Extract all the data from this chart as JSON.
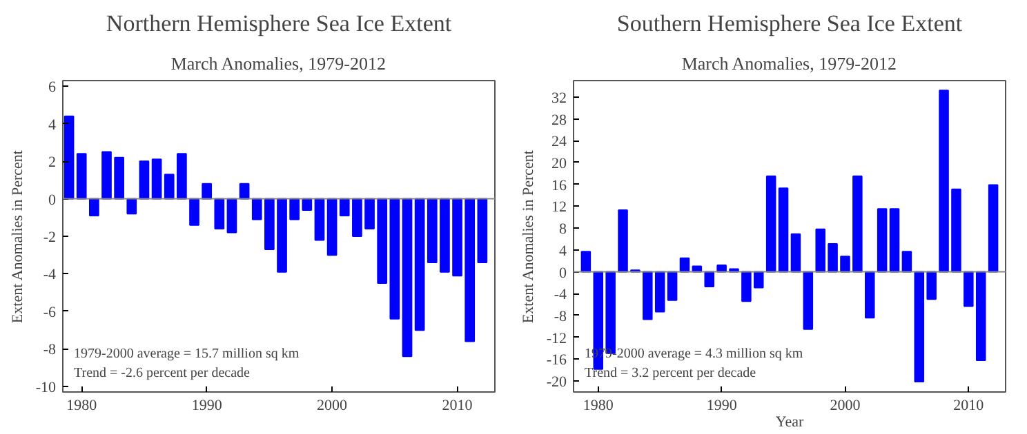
{
  "chart_data": [
    {
      "type": "bar",
      "title": "Northern Hemisphere Sea Ice Extent",
      "subtitle": "March Anomalies, 1979-2012",
      "ylabel": "Extent Anomalies in Percent",
      "x": [
        1979,
        1980,
        1981,
        1982,
        1983,
        1984,
        1985,
        1986,
        1987,
        1988,
        1989,
        1990,
        1991,
        1992,
        1993,
        1994,
        1995,
        1996,
        1997,
        1998,
        1999,
        2000,
        2001,
        2002,
        2003,
        2004,
        2005,
        2006,
        2007,
        2008,
        2009,
        2010,
        2011,
        2012
      ],
      "values": [
        4.4,
        2.4,
        -0.9,
        2.5,
        2.2,
        -0.8,
        2.0,
        2.1,
        1.3,
        2.4,
        -1.4,
        0.8,
        -1.6,
        -1.8,
        0.8,
        -1.1,
        -2.7,
        -3.9,
        -1.1,
        -0.6,
        -2.2,
        -3.0,
        -0.9,
        -2.0,
        -1.6,
        -4.5,
        -6.4,
        -8.4,
        -7.0,
        -3.4,
        -3.9,
        -4.1,
        -7.6,
        -3.4
      ],
      "color": "#0000ff",
      "xlim": [
        1978.5,
        2013
      ],
      "xticks": [
        1980,
        1990,
        2000,
        2010
      ],
      "ylim": [
        -10.3,
        6.3
      ],
      "yticks": [
        -10,
        -8,
        -6,
        -4,
        -2,
        0,
        2,
        4,
        6
      ],
      "ref_lines": [
        {
          "axis": "y",
          "value": 0,
          "color": "#888888"
        }
      ],
      "annotations": [
        "1979-2000 average = 15.7 million sq km",
        "Trend =   -2.6 percent per decade"
      ]
    },
    {
      "type": "bar",
      "title": "Southern Hemisphere Sea Ice Extent",
      "subtitle": "March Anomalies, 1979-2012",
      "xlabel": "Year",
      "ylabel": "Extent Anomalies in Percent",
      "x": [
        1979,
        1980,
        1981,
        1982,
        1983,
        1984,
        1985,
        1986,
        1987,
        1988,
        1989,
        1990,
        1991,
        1992,
        1993,
        1994,
        1995,
        1996,
        1997,
        1998,
        1999,
        2000,
        2001,
        2002,
        2003,
        2004,
        2005,
        2006,
        2007,
        2008,
        2009,
        2010,
        2011,
        2012
      ],
      "values": [
        3.7,
        -17.8,
        -14.9,
        11.3,
        0.3,
        -8.7,
        -7.3,
        -5.2,
        2.5,
        1.0,
        -2.7,
        1.2,
        0.5,
        -5.4,
        -2.9,
        17.5,
        15.3,
        6.9,
        -10.5,
        7.8,
        5.1,
        2.8,
        17.5,
        -8.4,
        11.5,
        11.5,
        3.7,
        -20.1,
        -5.0,
        33.2,
        15.1,
        -6.3,
        -16.2,
        15.9
      ],
      "color": "#0000ff",
      "xlim": [
        1978,
        2013
      ],
      "xticks": [
        1980,
        1990,
        2000,
        2010
      ],
      "ylim": [
        -22,
        35
      ],
      "yticks": [
        -20,
        -16,
        -12,
        -8,
        -4,
        0,
        4,
        8,
        12,
        16,
        20,
        24,
        28,
        32
      ],
      "ref_lines": [
        {
          "axis": "y",
          "value": 0,
          "color": "#888888"
        }
      ],
      "annotations": [
        "1979-2000 average =  4.3 million sq km",
        "Trend =    3.2 percent per decade"
      ]
    }
  ]
}
